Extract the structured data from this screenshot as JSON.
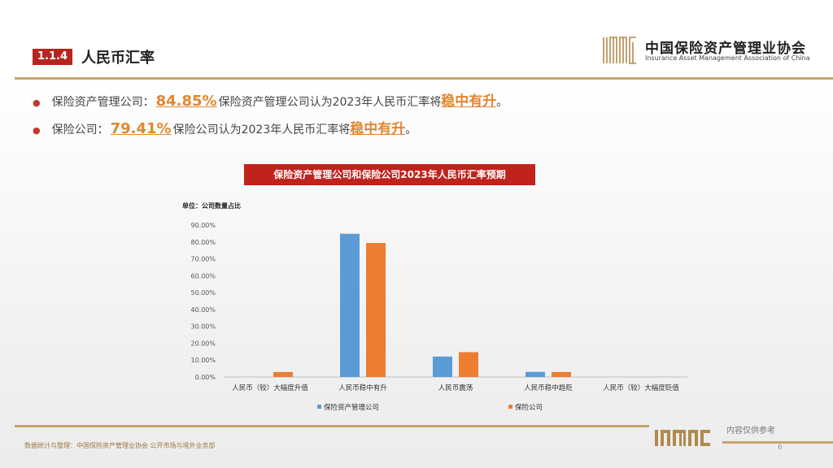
{
  "header": {
    "section_number": "1.1.4",
    "section_title": "人民币汇率",
    "org_name_cn": "中国保险资产管理业协会",
    "org_name_en": "Insurance Asset Management Association of China"
  },
  "bullets": [
    {
      "label": "保险资产管理公司：",
      "pct": "84.85%",
      "text": "保险资产管理公司认为2023年人民币汇率将",
      "emph": "稳中有升",
      "end": "。"
    },
    {
      "label": "保险公司：",
      "pct": "79.41%",
      "text": "保险公司认为2023年人民币汇率将",
      "emph": "稳中有升",
      "end": "。"
    }
  ],
  "colors": {
    "accent_red": "#c0221c",
    "orange": "#e2872e",
    "blue": "#5b9bd5",
    "series_orange": "#ed7d31",
    "gold_rule": "#c8a46a"
  },
  "chart_data": {
    "type": "bar",
    "title": "保险资产管理公司和保险公司2023年人民币汇率预期",
    "unit_label": "单位：公司数量占比",
    "categories": [
      "人民币（较）大幅度升值",
      "人民币稳中有升",
      "人民币震荡",
      "人民币稳中趋贬",
      "人民币（较）大幅度贬值"
    ],
    "series": [
      {
        "name": "保险资产管理公司",
        "values": [
          0,
          84.85,
          12.12,
          3.03,
          0
        ]
      },
      {
        "name": "保险公司",
        "values": [
          2.94,
          79.41,
          14.71,
          2.94,
          0
        ]
      }
    ],
    "yticks": [
      "0.00%",
      "10.00%",
      "20.00%",
      "30.00%",
      "40.00%",
      "50.00%",
      "60.00%",
      "70.00%",
      "80.00%",
      "90.00%"
    ],
    "ylim": [
      0,
      90
    ],
    "legend_position": "bottom"
  },
  "footer": {
    "source": "数据统计与整理：中国保险资产管理业协会 公开市场与境外业务部",
    "note": "内容仅供参考",
    "page": "6"
  }
}
